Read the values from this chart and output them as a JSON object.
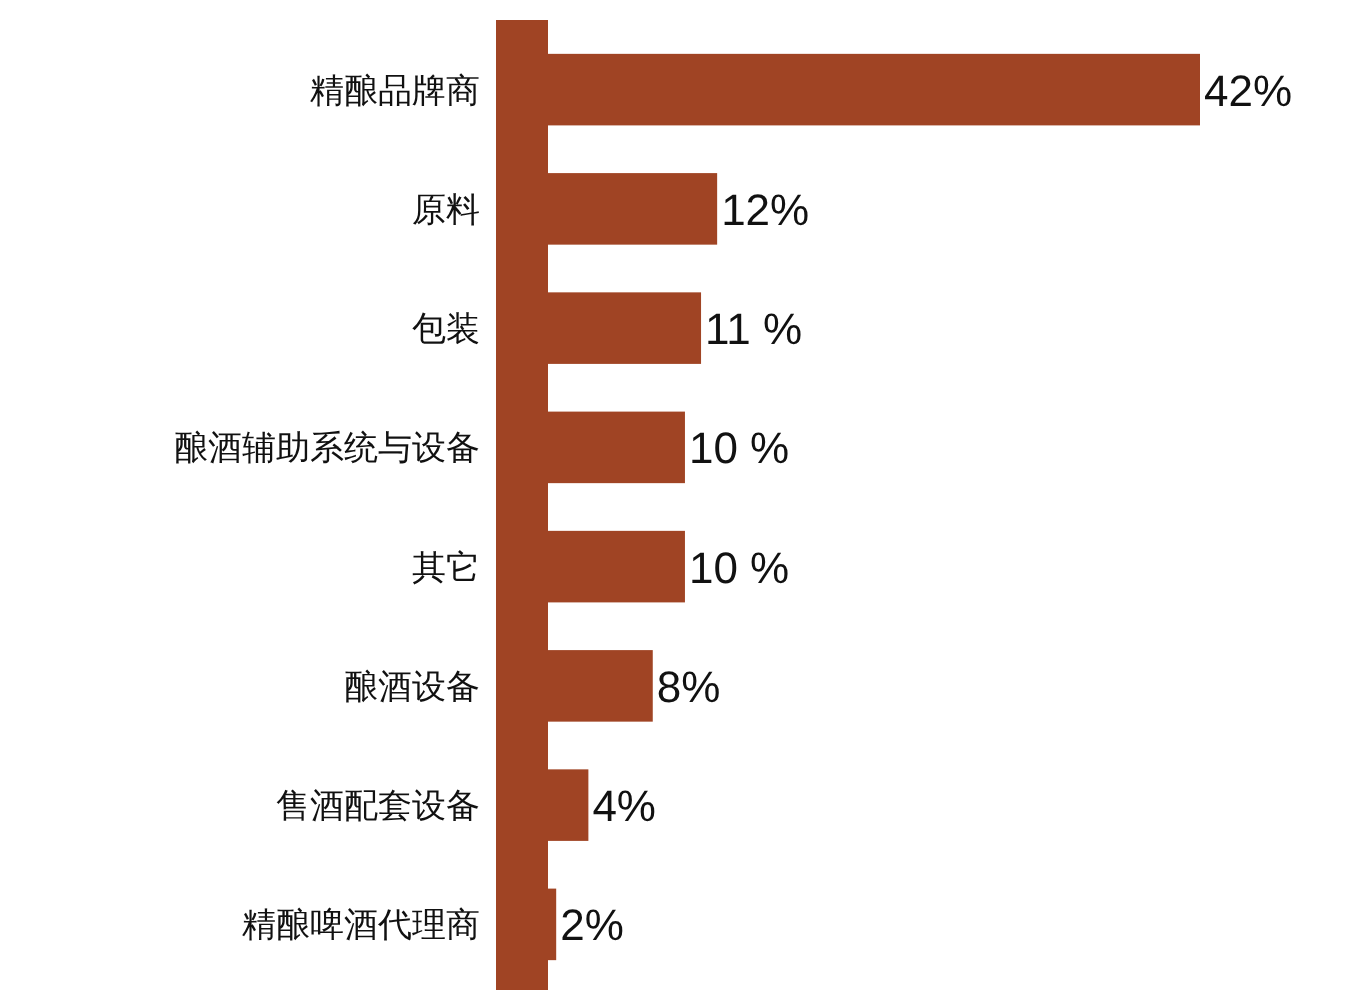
{
  "chart_data": {
    "type": "bar",
    "orientation": "horizontal",
    "categories": [
      "精酿品牌商",
      "原料",
      "包装",
      "酿酒辅助系统与设备",
      "其它",
      "酿酒设备",
      "售酒配套设备",
      "精酿啤酒代理商"
    ],
    "values": [
      42,
      12,
      11,
      10,
      10,
      8,
      4,
      2
    ],
    "value_labels": [
      "42%",
      "12%",
      "11 %",
      "10 %",
      "10 %",
      "8%",
      "4%",
      "2%"
    ],
    "color": "#a04424"
  }
}
